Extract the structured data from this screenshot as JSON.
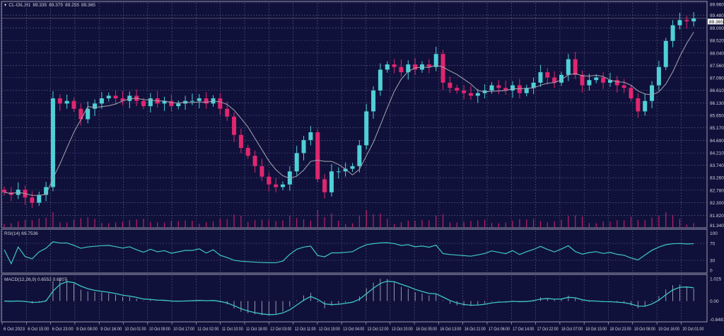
{
  "header": {
    "symbol": "CL-OIL,H1",
    "open": "89.335",
    "high": "89.375",
    "low": "89.255",
    "close": "89.365"
  },
  "colors": {
    "background": "#10113a",
    "grid": "#5a5c85",
    "bull": "#4fd0d6",
    "bear": "#e0266f",
    "ma": "#a5a5b0",
    "indicator": "#3ec7c9",
    "volume": "#c0206a"
  },
  "chart_data": [
    {
      "type": "candlestick",
      "title": "CL-OIL,H1",
      "ylim": [
        81.34,
        89.96
      ],
      "y_ticks": [
        "89.960",
        "89.480",
        "89.000",
        "88.520",
        "88.040",
        "87.560",
        "87.090",
        "86.610",
        "86.130",
        "85.650",
        "85.170",
        "84.690",
        "84.210",
        "83.740",
        "83.260",
        "82.780",
        "82.300",
        "81.820",
        "81.340"
      ],
      "current_price": "89.365",
      "x_tick_labels": [
        "6 Oct 2023",
        "6 Oct 15:00",
        "6 Oct 23:00",
        "9 Oct 08:00",
        "9 Oct 16:00",
        "10 Oct 01:00",
        "10 Oct 09:00",
        "10 Oct 17:00",
        "11 Oct 02:00",
        "11 Oct 10:00",
        "11 Oct 18:00",
        "12 Oct 03:00",
        "12 Oct 11:00",
        "12 Oct 19:00",
        "13 Oct 04:00",
        "13 Oct 12:00",
        "13 Oct 20:00",
        "16 Oct 05:00",
        "16 Oct 13:00",
        "16 Oct 21:00",
        "17 Oct 06:00",
        "17 Oct 14:00",
        "17 Oct 22:00",
        "18 Oct 07:00",
        "18 Oct 15:00",
        "18 Oct 23:00",
        "19 Oct 08:00",
        "19 Oct 16:00",
        "20 Oct 01:00"
      ],
      "closes": [
        82.7,
        82.6,
        82.8,
        82.5,
        82.3,
        82.6,
        82.9,
        86.3,
        86.1,
        86.2,
        85.9,
        85.5,
        85.9,
        86.1,
        86.3,
        86.4,
        86.3,
        86.2,
        86.4,
        86.2,
        86.0,
        86.3,
        86.1,
        86.2,
        86.0,
        86.1,
        86.2,
        86.2,
        86.3,
        86.1,
        86.3,
        85.9,
        85.6,
        84.9,
        84.4,
        84.1,
        83.7,
        83.3,
        83.0,
        82.9,
        83.0,
        83.5,
        84.2,
        84.7,
        85.0,
        83.2,
        82.7,
        83.5,
        83.5,
        83.6,
        83.7,
        84.5,
        85.8,
        86.6,
        87.4,
        87.6,
        87.5,
        87.3,
        87.6,
        87.4,
        87.6,
        87.5,
        88.0,
        86.9,
        86.7,
        86.6,
        86.5,
        86.4,
        86.5,
        86.6,
        86.8,
        86.7,
        86.6,
        86.8,
        86.5,
        86.7,
        86.9,
        87.3,
        87.1,
        86.9,
        87.2,
        87.8,
        87.2,
        86.8,
        87.0,
        87.1,
        86.9,
        87.0,
        86.8,
        86.7,
        86.3,
        85.8,
        86.2,
        86.8,
        87.5,
        88.5,
        89.1,
        89.3,
        89.25,
        89.365
      ],
      "first_open": 82.8,
      "overlay": "moving average"
    },
    {
      "type": "line",
      "title": "RSI(14) 69.7536",
      "ylim": [
        0,
        100
      ],
      "y_ticks": [
        "100",
        "70",
        "30",
        "0"
      ]
    },
    {
      "type": "bar+line",
      "title": "MACD(12,26,9) 0.6552 0.6207",
      "ylim": [
        -0.8481,
        1.025
      ],
      "y_ticks": [
        "1.025",
        "0.00",
        "-0.8481"
      ]
    }
  ]
}
